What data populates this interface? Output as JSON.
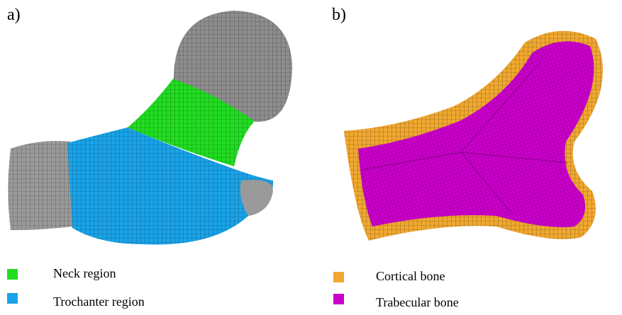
{
  "panels": [
    {
      "label": "a)",
      "legend": [
        {
          "text": "Neck region",
          "color": "#22dd22"
        },
        {
          "text": "Trochanter region",
          "color": "#1aa3e8"
        }
      ]
    },
    {
      "label": "b)",
      "legend": [
        {
          "text": "Cortical bone",
          "color": "#f0a830"
        },
        {
          "text": "Trabecular bone",
          "color": "#cc00cc"
        }
      ]
    }
  ]
}
